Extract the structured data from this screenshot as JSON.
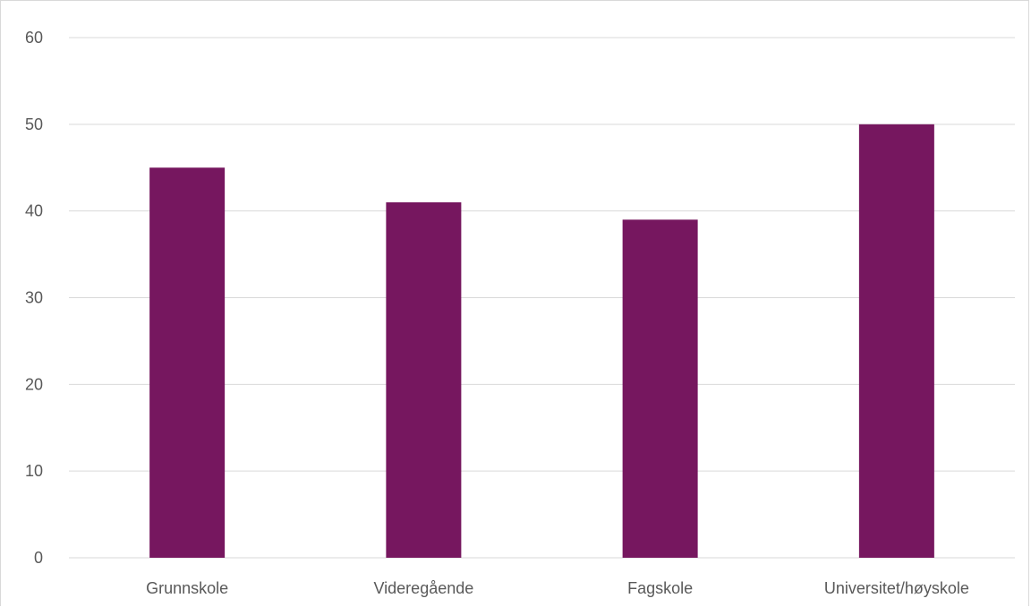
{
  "chart_data": {
    "type": "bar",
    "title": "",
    "xlabel": "",
    "ylabel": "",
    "categories": [
      "Grunnskole",
      "Videregående",
      "Fagskole",
      "Universitet/høyskole"
    ],
    "values": [
      45,
      41,
      39,
      50
    ],
    "ylim": [
      0,
      60
    ],
    "yticks": [
      "0",
      "10",
      "20",
      "30",
      "40",
      "50",
      "60"
    ],
    "grid": true,
    "legend": "none",
    "bar_color": "#76175f",
    "gridline_color": "#d9d9d9",
    "label_color": "#595959"
  }
}
